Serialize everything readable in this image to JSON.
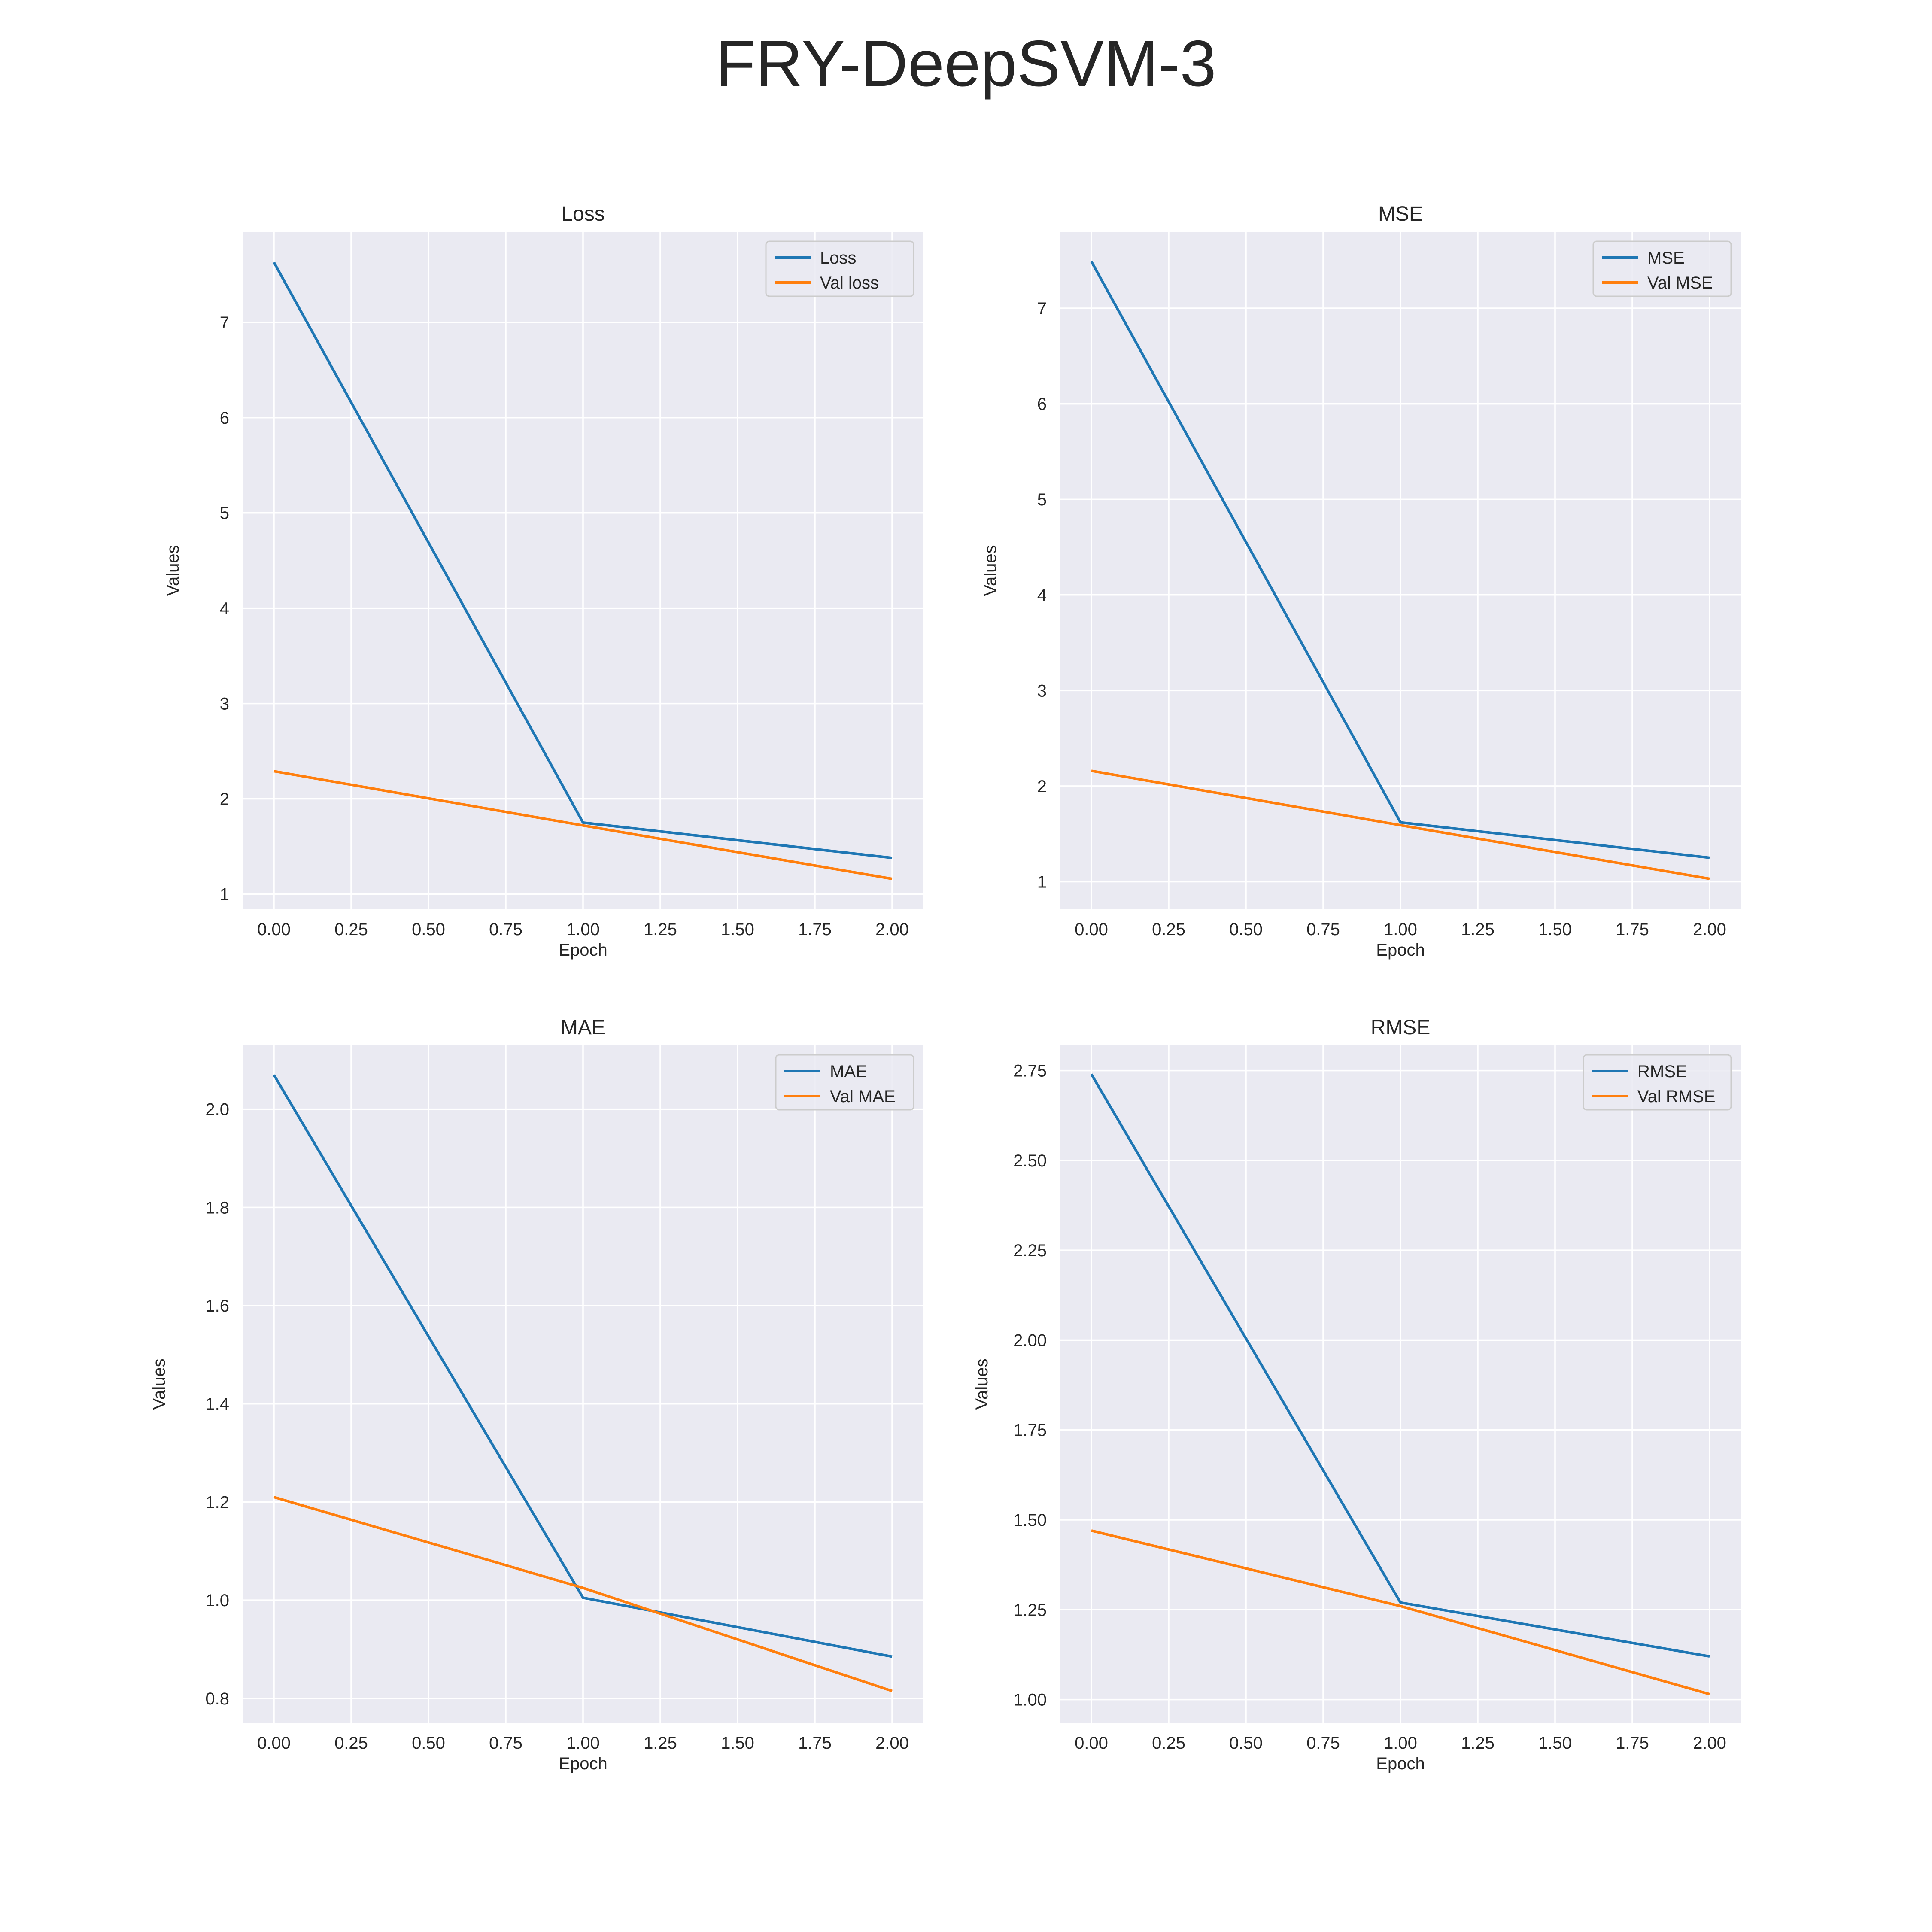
{
  "figure": {
    "title": "FRY-DeepSVM-3"
  },
  "colors": {
    "series_1": "#1f77b4",
    "series_2": "#ff7f0e",
    "plot_background": "#eaeaf2",
    "grid": "#ffffff"
  },
  "chart_data": [
    {
      "type": "line",
      "title": "Loss",
      "xlabel": "Epoch",
      "ylabel": "Values",
      "x": [
        0,
        1,
        2
      ],
      "xlim": [
        -0.1,
        2.1
      ],
      "ylim": [
        0.84,
        7.95
      ],
      "xticks": [
        0.0,
        0.25,
        0.5,
        0.75,
        1.0,
        1.25,
        1.5,
        1.75,
        2.0
      ],
      "xtick_labels": [
        "0.00",
        "0.25",
        "0.50",
        "0.75",
        "1.00",
        "1.25",
        "1.50",
        "1.75",
        "2.00"
      ],
      "yticks": [
        1,
        2,
        3,
        4,
        5,
        6,
        7
      ],
      "ytick_labels": [
        "1",
        "2",
        "3",
        "4",
        "5",
        "6",
        "7"
      ],
      "grid": true,
      "legend_position": "upper right",
      "series": [
        {
          "name": "Loss",
          "values": [
            7.63,
            1.75,
            1.38
          ]
        },
        {
          "name": "Val loss",
          "values": [
            2.29,
            1.72,
            1.16
          ]
        }
      ]
    },
    {
      "type": "line",
      "title": "MSE",
      "xlabel": "Epoch",
      "ylabel": "Values",
      "x": [
        0,
        1,
        2
      ],
      "xlim": [
        -0.1,
        2.1
      ],
      "ylim": [
        0.71,
        7.8
      ],
      "xticks": [
        0.0,
        0.25,
        0.5,
        0.75,
        1.0,
        1.25,
        1.5,
        1.75,
        2.0
      ],
      "xtick_labels": [
        "0.00",
        "0.25",
        "0.50",
        "0.75",
        "1.00",
        "1.25",
        "1.50",
        "1.75",
        "2.00"
      ],
      "yticks": [
        1,
        2,
        3,
        4,
        5,
        6,
        7
      ],
      "ytick_labels": [
        "1",
        "2",
        "3",
        "4",
        "5",
        "6",
        "7"
      ],
      "grid": true,
      "legend_position": "upper right",
      "series": [
        {
          "name": "MSE",
          "values": [
            7.49,
            1.62,
            1.25
          ]
        },
        {
          "name": "Val MSE",
          "values": [
            2.16,
            1.59,
            1.03
          ]
        }
      ]
    },
    {
      "type": "line",
      "title": "MAE",
      "xlabel": "Epoch",
      "ylabel": "Values",
      "x": [
        0,
        1,
        2
      ],
      "xlim": [
        -0.1,
        2.1
      ],
      "ylim": [
        0.75,
        2.13
      ],
      "xticks": [
        0.0,
        0.25,
        0.5,
        0.75,
        1.0,
        1.25,
        1.5,
        1.75,
        2.0
      ],
      "xtick_labels": [
        "0.00",
        "0.25",
        "0.50",
        "0.75",
        "1.00",
        "1.25",
        "1.50",
        "1.75",
        "2.00"
      ],
      "yticks": [
        0.8,
        1.0,
        1.2,
        1.4,
        1.6,
        1.8,
        2.0
      ],
      "ytick_labels": [
        "0.8",
        "1.0",
        "1.2",
        "1.4",
        "1.6",
        "1.8",
        "2.0"
      ],
      "grid": true,
      "legend_position": "upper right",
      "series": [
        {
          "name": "MAE",
          "values": [
            2.07,
            1.005,
            0.885
          ]
        },
        {
          "name": "Val MAE",
          "values": [
            1.21,
            1.025,
            0.815
          ]
        }
      ]
    },
    {
      "type": "line",
      "title": "RMSE",
      "xlabel": "Epoch",
      "ylabel": "Values",
      "x": [
        0,
        1,
        2
      ],
      "xlim": [
        -0.1,
        2.1
      ],
      "ylim": [
        0.935,
        2.82
      ],
      "xticks": [
        0.0,
        0.25,
        0.5,
        0.75,
        1.0,
        1.25,
        1.5,
        1.75,
        2.0
      ],
      "xtick_labels": [
        "0.00",
        "0.25",
        "0.50",
        "0.75",
        "1.00",
        "1.25",
        "1.50",
        "1.75",
        "2.00"
      ],
      "yticks": [
        1.0,
        1.25,
        1.5,
        1.75,
        2.0,
        2.25,
        2.5,
        2.75
      ],
      "ytick_labels": [
        "1.00",
        "1.25",
        "1.50",
        "1.75",
        "2.00",
        "2.25",
        "2.50",
        "2.75"
      ],
      "grid": true,
      "legend_position": "upper right",
      "series": [
        {
          "name": "RMSE",
          "values": [
            2.74,
            1.27,
            1.12
          ]
        },
        {
          "name": "Val RMSE",
          "values": [
            1.47,
            1.26,
            1.015
          ]
        }
      ]
    }
  ]
}
